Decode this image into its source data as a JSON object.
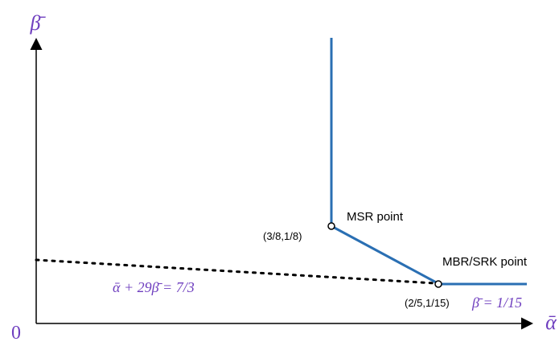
{
  "axes": {
    "y_label": "β̄",
    "x_label": "ᾱ",
    "origin_label": "0"
  },
  "points": {
    "msr": {
      "label": "MSR point",
      "coord_text": "(3/8,1/8)"
    },
    "mbr": {
      "label": "MBR/SRK point",
      "coord_text": "(2/5,1/15)"
    }
  },
  "annotations": {
    "dashed_line_equation": "ᾱ + 29β̄ = 7/3",
    "horizontal_line_equation": "β̄ = 1/15"
  },
  "colors": {
    "curve": "#2a6fb3",
    "purple_text": "#6f3fbf",
    "axis": "#000000",
    "dashed": "#000000"
  }
}
